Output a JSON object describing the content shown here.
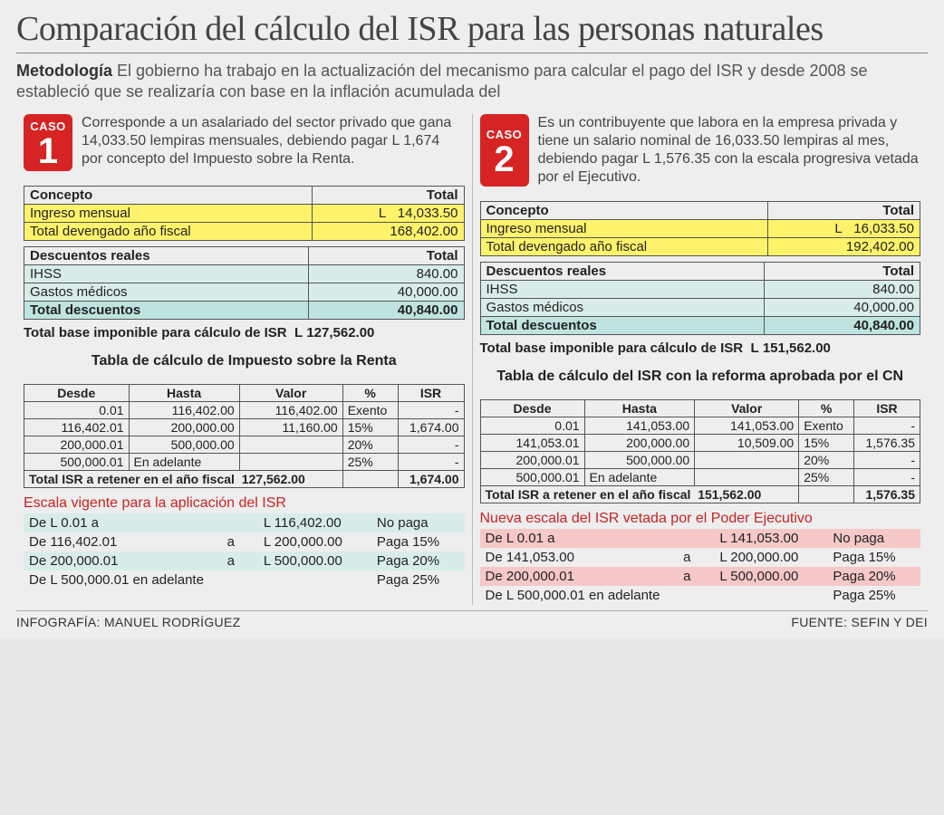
{
  "title": "Comparación del cálculo del ISR para las personas naturales",
  "methodology_label": "Metodología",
  "methodology": "El gobierno ha trabajo en la actualización del mecanismo para calcular el pago del ISR y desde 2008 se estableció que se realizaría con base en la inflación acumulada del",
  "caso_word": "CASO",
  "headers": {
    "concepto": "Concepto",
    "total": "Total",
    "desc_reales": "Descuentos reales",
    "desde": "Desde",
    "hasta": "Hasta",
    "valor": "Valor",
    "pct": "%",
    "isr": "ISR"
  },
  "labels": {
    "ingreso": "Ingreso mensual",
    "devengado": "Total devengado año fiscal",
    "ihss": "IHSS",
    "gastos": "Gastos médicos",
    "total_desc": "Total descuentos",
    "base": "Total base imponible para cálculo de ISR",
    "total_isr": "Total ISR a retener en el año fiscal",
    "currency": "L"
  },
  "scale_cols": {
    "a": "a",
    "nopaga": "No paga",
    "p15": "Paga 15%",
    "p20": "Paga 20%",
    "p25": "Paga 25%",
    "adelante": "en adelante"
  },
  "common": {
    "ihss": "840.00",
    "gastos": "40,000.00",
    "total_desc": "40,840.00"
  },
  "caso1": {
    "num": "1",
    "desc": "Corresponde a un asalariado del sector privado que gana 14,033.50 lempiras mensuales, debiendo pagar L 1,674 por concepto del Impuesto sobre la Renta.",
    "ingreso": "14,033.50",
    "devengado": "168,402.00",
    "base": "127,562.00",
    "tabla_title": "Tabla de cálculo de Impuesto sobre la Renta",
    "rows": [
      {
        "d": "0.01",
        "h": "116,402.00",
        "v": "116,402.00",
        "p": "Exento",
        "i": "-"
      },
      {
        "d": "116,402.01",
        "h": "200,000.00",
        "v": "11,160.00",
        "p": "15%",
        "i": "1,674.00"
      },
      {
        "d": "200,000.01",
        "h": "500,000.00",
        "v": "",
        "p": "20%",
        "i": "-"
      },
      {
        "d": "500,000.01",
        "h": "En adelante",
        "v": "",
        "p": "25%",
        "i": "-"
      }
    ],
    "total_base": "127,562.00",
    "total_isr": "1,674.00",
    "scale_title": "Escala vigente para la aplicación del ISR",
    "scale": [
      {
        "from": "De  L 0.01 a",
        "to": "L 116,402.00",
        "pay": "No paga"
      },
      {
        "from": "De 116,402.01",
        "mid": "a",
        "to": "L 200,000.00",
        "pay": "Paga 15%"
      },
      {
        "from": "De 200,000.01",
        "mid": "a",
        "to": "L 500,000.00",
        "pay": "Paga 20%"
      },
      {
        "from": "De L 500,000.01 en adelante",
        "to": "",
        "pay": "Paga 25%"
      }
    ]
  },
  "caso2": {
    "num": "2",
    "desc": "Es un contribuyente que labora en la empresa privada y tiene un salario nominal de 16,033.50 lempiras al mes, debiendo pagar L 1,576.35 con la escala progresiva vetada por el Ejecutivo.",
    "ingreso": "16,033.50",
    "devengado": "192,402.00",
    "base": "151,562.00",
    "tabla_title": "Tabla de cálculo del ISR con la reforma aprobada por el CN",
    "rows": [
      {
        "d": "0.01",
        "h": "141,053.00",
        "v": "141,053.00",
        "p": "Exento",
        "i": "-"
      },
      {
        "d": "141,053.01",
        "h": "200,000.00",
        "v": "10,509.00",
        "p": "15%",
        "i": "1,576.35"
      },
      {
        "d": "200,000.01",
        "h": "500,000.00",
        "v": "",
        "p": "20%",
        "i": "-"
      },
      {
        "d": "500,000.01",
        "h": "En adelante",
        "v": "",
        "p": "25%",
        "i": "-"
      }
    ],
    "total_base": "151,562.00",
    "total_isr": "1,576.35",
    "scale_title": "Nueva escala del ISR  vetada por el Poder Ejecutivo",
    "scale": [
      {
        "from": "De  L 0.01 a",
        "to": "L 141,053.00",
        "pay": "No paga"
      },
      {
        "from": "De 141,053.00",
        "mid": "a",
        "to": "L 200,000.00",
        "pay": "Paga 15%"
      },
      {
        "from": "De 200,000.01",
        "mid": "a",
        "to": "L 500,000.00",
        "pay": "Paga 20%"
      },
      {
        "from": "De L 500,000.01 en adelante",
        "to": "",
        "pay": "Paga 25%"
      }
    ]
  },
  "footer": {
    "left": "INFOGRAFÍA: MANUEL RODRÍGUEZ",
    "right": "FUENTE: SEFIN Y DEI"
  },
  "colors": {
    "red": "#d62324",
    "yellow": "#fff36b",
    "teal": "#bfe4e0",
    "lightteal": "#d8ede9",
    "pink": "#f6c8c8",
    "bg": "#eeeeee"
  }
}
